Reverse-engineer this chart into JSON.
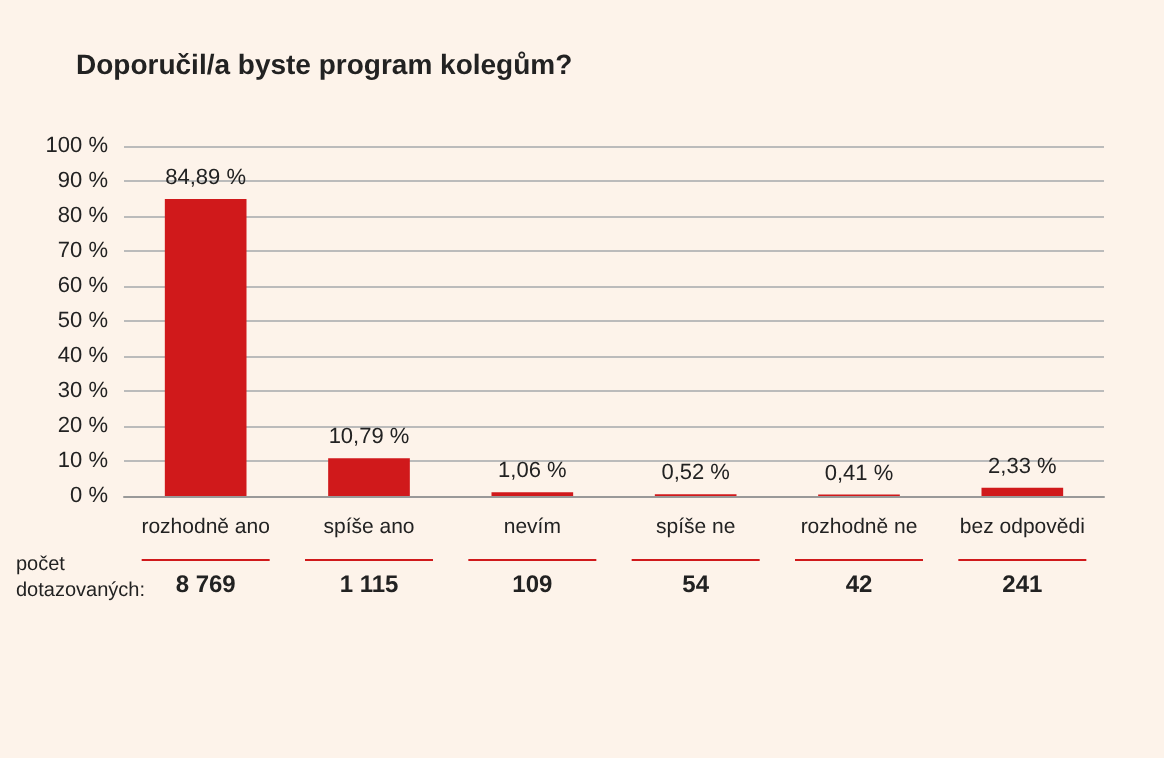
{
  "chart_data": {
    "type": "bar",
    "title": "Doporučil/a byste program kolegům?",
    "categories": [
      "rozhodně ano",
      "spíše ano",
      "nevím",
      "spíše ne",
      "rozhodně ne",
      "bez odpovědi"
    ],
    "values": [
      84.89,
      10.79,
      1.06,
      0.52,
      0.41,
      2.33
    ],
    "value_labels": [
      "84,89 %",
      "10,79 %",
      "1,06 %",
      "0,52 %",
      "0,41 %",
      "2,33 %"
    ],
    "color": "#d0191b",
    "ylim": [
      0,
      100
    ],
    "yticks": [
      {
        "value": 0,
        "label": "0 %"
      },
      {
        "value": 10,
        "label": "10 %"
      },
      {
        "value": 20,
        "label": "20 %"
      },
      {
        "value": 30,
        "label": "30 %"
      },
      {
        "value": 40,
        "label": "40 %"
      },
      {
        "value": 50,
        "label": "50 %"
      },
      {
        "value": 60,
        "label": "60 %"
      },
      {
        "value": 70,
        "label": "70 %"
      },
      {
        "value": 80,
        "label": "80 %"
      },
      {
        "value": 90,
        "label": "90 %"
      },
      {
        "value": 100,
        "label": "100 %"
      }
    ],
    "grid": "y",
    "annotations": [
      "počet\ndotazovaných:",
      "8 769",
      "1 115",
      "109",
      "54",
      "42",
      "241"
    ]
  }
}
